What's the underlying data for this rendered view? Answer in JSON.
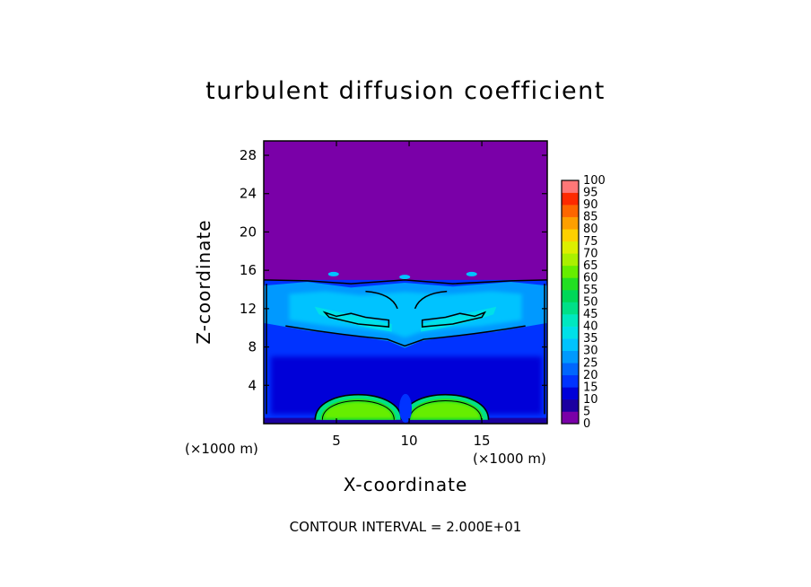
{
  "chart_data": {
    "type": "heatmap",
    "title": "turbulent diffusion coefficient",
    "xlabel": "X-coordinate",
    "ylabel": "Z-coordinate",
    "x_unit_label": "(×1000 m)",
    "xlim": [
      0,
      19.5
    ],
    "ylim": [
      0,
      29.5
    ],
    "x_ticks": [
      5,
      10,
      15
    ],
    "y_ticks": [
      4,
      8,
      12,
      16,
      20,
      24,
      28
    ],
    "note": "CONTOUR INTERVAL = 2.000E+01",
    "colorbar": {
      "levels": [
        0,
        5,
        10,
        15,
        20,
        25,
        30,
        35,
        40,
        45,
        50,
        55,
        60,
        65,
        70,
        75,
        80,
        85,
        90,
        95,
        100
      ],
      "colors": [
        "#7a00a8",
        "#1c00a0",
        "#0000d8",
        "#0033ff",
        "#0066ff",
        "#0099ff",
        "#00c3ff",
        "#00e0e8",
        "#00e8c0",
        "#00e088",
        "#00d858",
        "#22e022",
        "#66ee00",
        "#aaf000",
        "#ddee00",
        "#ffd000",
        "#ff9f00",
        "#ff6600",
        "#ff2a00",
        "#ff7777"
      ]
    },
    "field_regions": [
      {
        "name": "upper-calm-region",
        "z_range": [
          15,
          29.5
        ],
        "value_range": [
          0,
          5
        ]
      },
      {
        "name": "mid-turbulent-layer",
        "z_range": [
          8,
          15
        ],
        "value_range": [
          20,
          40
        ]
      },
      {
        "name": "lower-layer",
        "z_range": [
          1,
          8
        ],
        "value_range": [
          10,
          20
        ]
      },
      {
        "name": "left-surface-cell",
        "x_center": 6.5,
        "z_center": 2,
        "value_range": [
          40,
          65
        ]
      },
      {
        "name": "right-surface-cell",
        "x_center": 12.5,
        "z_center": 2,
        "value_range": [
          40,
          65
        ]
      }
    ]
  }
}
